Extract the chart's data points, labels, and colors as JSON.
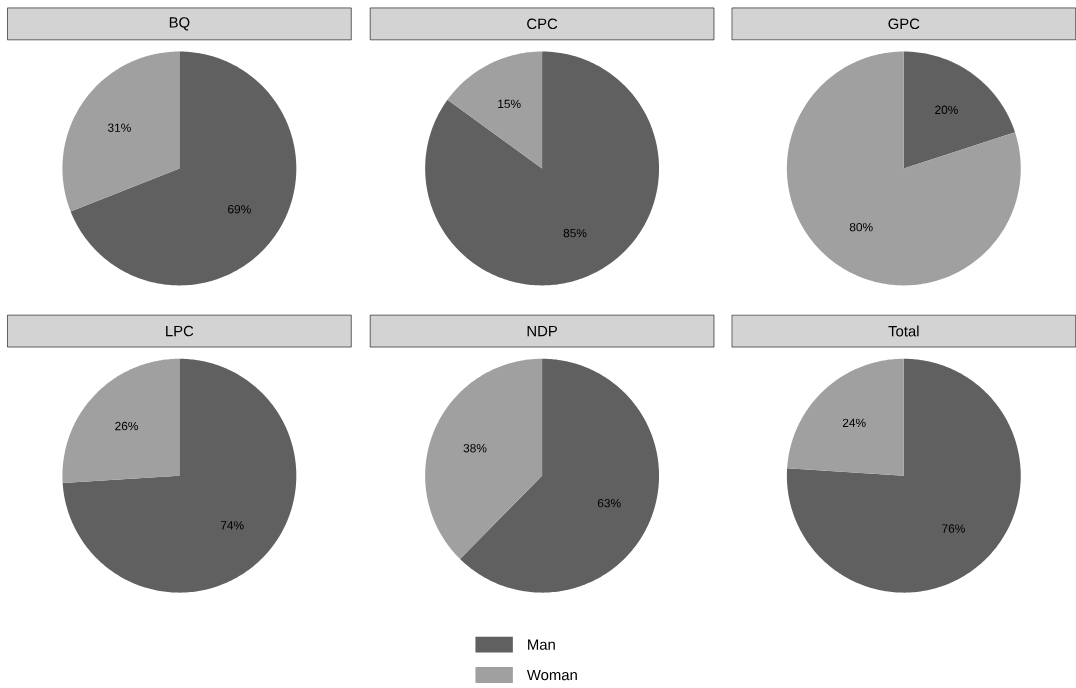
{
  "chart_data": [
    {
      "type": "pie",
      "title": "BQ",
      "categories": [
        null,
        null
      ],
      "values": [
        69,
        31
      ],
      "colors": [
        "#606060",
        "#a0a0a0"
      ],
      "value_labels": [
        "69%",
        "31%"
      ]
    },
    {
      "type": "pie",
      "title": "CPC",
      "categories": [
        null,
        null
      ],
      "values": [
        85,
        15
      ],
      "colors": [
        "#606060",
        "#a0a0a0"
      ],
      "value_labels": [
        "85%",
        "15%"
      ]
    },
    {
      "type": "pie",
      "title": "GPC",
      "categories": [
        null,
        null
      ],
      "values": [
        20,
        80
      ],
      "colors": [
        "#606060",
        "#a0a0a0"
      ],
      "value_labels": [
        "20%",
        "80%"
      ]
    },
    {
      "type": "pie",
      "title": "LPC",
      "categories": [
        null,
        null
      ],
      "values": [
        74,
        26
      ],
      "colors": [
        "#606060",
        "#a0a0a0"
      ],
      "value_labels": [
        "74%",
        "26%"
      ]
    },
    {
      "type": "pie",
      "title": "NDP",
      "categories": [
        "Man",
        "Woman"
      ],
      "values": [
        63,
        38
      ],
      "colors": [
        "#606060",
        "#a0a0a0"
      ],
      "value_labels": [
        "63%",
        "38%"
      ],
      "legend": "bottom"
    },
    {
      "type": "pie",
      "title": "Total",
      "categories": [
        null,
        null
      ],
      "values": [
        76,
        24
      ],
      "colors": [
        "#606060",
        "#a0a0a0"
      ],
      "value_labels": [
        "76%",
        "24%"
      ]
    }
  ]
}
